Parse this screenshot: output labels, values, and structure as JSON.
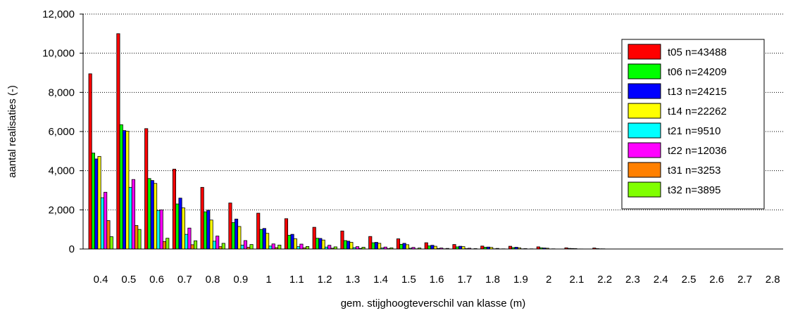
{
  "chart_data": {
    "type": "bar",
    "xlabel": "gem. stijghoogteverschil van klasse (m)",
    "ylabel": "aantal realisaties (-)",
    "ylim": [
      0,
      12000
    ],
    "yticks": [
      0,
      2000,
      4000,
      6000,
      8000,
      10000,
      12000
    ],
    "ytick_labels": [
      "0",
      "2,000",
      "4,000",
      "6,000",
      "8,000",
      "10,000",
      "12,000"
    ],
    "x_tick_labels": [
      "0.4",
      "0.5",
      "0.6",
      "0.7",
      "0.8",
      "0.9",
      "1",
      "1.1",
      "1.2",
      "1.3",
      "1.4",
      "1.5",
      "1.6",
      "1.7",
      "1.8",
      "1.9",
      "2",
      "2.1",
      "2.2",
      "2.3",
      "2.4",
      "2.5",
      "2.6",
      "2.7",
      "2.8"
    ],
    "grid": "horizontal dotted",
    "legend_position": "top-right",
    "series": [
      {
        "name": "t05 n=43488",
        "color": "#ff0000",
        "values": [
          8950,
          11000,
          6150,
          4080,
          3150,
          2350,
          1830,
          1550,
          1110,
          920,
          640,
          520,
          320,
          230,
          150,
          140,
          110,
          60,
          50,
          0,
          0,
          0,
          0,
          0,
          0
        ]
      },
      {
        "name": "t06 n=24209",
        "color": "#00ff00",
        "values": [
          4900,
          6350,
          3600,
          2300,
          1900,
          1350,
          1000,
          700,
          550,
          430,
          320,
          240,
          160,
          110,
          90,
          70,
          60,
          30,
          20,
          0,
          0,
          0,
          0,
          0,
          0
        ]
      },
      {
        "name": "t13 n=24215",
        "color": "#0000ff",
        "values": [
          4600,
          6050,
          3500,
          2600,
          1980,
          1530,
          1050,
          750,
          540,
          400,
          340,
          290,
          190,
          140,
          100,
          90,
          50,
          25,
          10,
          0,
          0,
          0,
          0,
          0,
          0
        ]
      },
      {
        "name": "t14 n=22262",
        "color": "#ffff00",
        "values": [
          4730,
          6020,
          3350,
          2100,
          1480,
          1150,
          800,
          520,
          460,
          340,
          290,
          220,
          140,
          120,
          80,
          60,
          40,
          20,
          10,
          0,
          0,
          0,
          0,
          0,
          0
        ]
      },
      {
        "name": "t21 n=9510",
        "color": "#00ffff",
        "values": [
          2620,
          3150,
          1970,
          750,
          400,
          200,
          150,
          120,
          100,
          70,
          50,
          40,
          30,
          20,
          10,
          10,
          5,
          5,
          0,
          0,
          0,
          0,
          0,
          0,
          0
        ]
      },
      {
        "name": "t22 n=12036",
        "color": "#ff00ff",
        "values": [
          2900,
          3550,
          2000,
          1070,
          660,
          430,
          260,
          250,
          190,
          120,
          100,
          80,
          50,
          40,
          30,
          20,
          10,
          5,
          0,
          0,
          0,
          0,
          0,
          0,
          0
        ]
      },
      {
        "name": "t31 n=3253",
        "color": "#ff8000",
        "values": [
          1450,
          1200,
          380,
          220,
          120,
          90,
          70,
          60,
          40,
          30,
          20,
          10,
          10,
          5,
          5,
          0,
          0,
          0,
          0,
          0,
          0,
          0,
          0,
          0,
          0
        ]
      },
      {
        "name": "t32 n=3895",
        "color": "#80ff00",
        "values": [
          630,
          1000,
          550,
          420,
          290,
          230,
          200,
          130,
          110,
          90,
          60,
          50,
          30,
          20,
          10,
          10,
          0,
          0,
          0,
          0,
          0,
          0,
          0,
          0,
          0
        ]
      }
    ]
  }
}
